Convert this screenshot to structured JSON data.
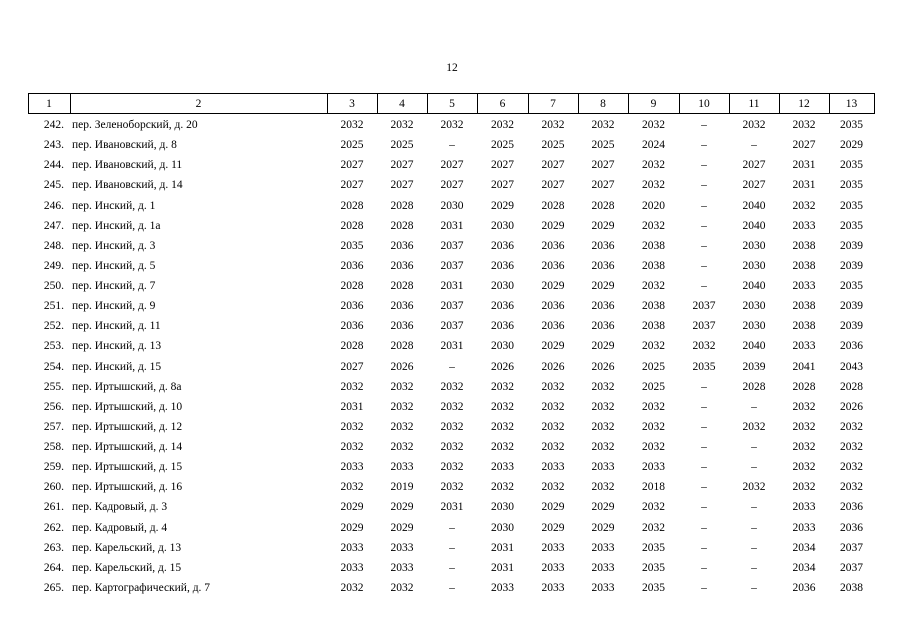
{
  "page_number": "12",
  "table": {
    "header": [
      "1",
      "2",
      "3",
      "4",
      "5",
      "6",
      "7",
      "8",
      "9",
      "10",
      "11",
      "12",
      "13"
    ],
    "rows": [
      [
        "242.",
        "пер. Зеленоборский, д. 20",
        "2032",
        "2032",
        "2032",
        "2032",
        "2032",
        "2032",
        "2032",
        "–",
        "2032",
        "2032",
        "2035"
      ],
      [
        "243.",
        "пер. Ивановский, д. 8",
        "2025",
        "2025",
        "–",
        "2025",
        "2025",
        "2025",
        "2024",
        "–",
        "–",
        "2027",
        "2029"
      ],
      [
        "244.",
        "пер. Ивановский, д. 11",
        "2027",
        "2027",
        "2027",
        "2027",
        "2027",
        "2027",
        "2032",
        "–",
        "2027",
        "2031",
        "2035"
      ],
      [
        "245.",
        "пер. Ивановский, д. 14",
        "2027",
        "2027",
        "2027",
        "2027",
        "2027",
        "2027",
        "2032",
        "–",
        "2027",
        "2031",
        "2035"
      ],
      [
        "246.",
        "пер. Инский, д. 1",
        "2028",
        "2028",
        "2030",
        "2029",
        "2028",
        "2028",
        "2020",
        "–",
        "2040",
        "2032",
        "2035"
      ],
      [
        "247.",
        "пер. Инский, д. 1а",
        "2028",
        "2028",
        "2031",
        "2030",
        "2029",
        "2029",
        "2032",
        "–",
        "2040",
        "2033",
        "2035"
      ],
      [
        "248.",
        "пер. Инский, д. 3",
        "2035",
        "2036",
        "2037",
        "2036",
        "2036",
        "2036",
        "2038",
        "–",
        "2030",
        "2038",
        "2039"
      ],
      [
        "249.",
        "пер. Инский, д. 5",
        "2036",
        "2036",
        "2037",
        "2036",
        "2036",
        "2036",
        "2038",
        "–",
        "2030",
        "2038",
        "2039"
      ],
      [
        "250.",
        "пер. Инский, д. 7",
        "2028",
        "2028",
        "2031",
        "2030",
        "2029",
        "2029",
        "2032",
        "–",
        "2040",
        "2033",
        "2035"
      ],
      [
        "251.",
        "пер. Инский, д. 9",
        "2036",
        "2036",
        "2037",
        "2036",
        "2036",
        "2036",
        "2038",
        "2037",
        "2030",
        "2038",
        "2039"
      ],
      [
        "252.",
        "пер. Инский, д. 11",
        "2036",
        "2036",
        "2037",
        "2036",
        "2036",
        "2036",
        "2038",
        "2037",
        "2030",
        "2038",
        "2039"
      ],
      [
        "253.",
        "пер. Инский, д. 13",
        "2028",
        "2028",
        "2031",
        "2030",
        "2029",
        "2029",
        "2032",
        "2032",
        "2040",
        "2033",
        "2036"
      ],
      [
        "254.",
        "пер. Инский, д. 15",
        "2027",
        "2026",
        "–",
        "2026",
        "2026",
        "2026",
        "2025",
        "2035",
        "2039",
        "2041",
        "2043"
      ],
      [
        "255.",
        "пер. Иртышский, д. 8а",
        "2032",
        "2032",
        "2032",
        "2032",
        "2032",
        "2032",
        "2025",
        "–",
        "2028",
        "2028",
        "2028"
      ],
      [
        "256.",
        "пер. Иртышский, д. 10",
        "2031",
        "2032",
        "2032",
        "2032",
        "2032",
        "2032",
        "2032",
        "–",
        "–",
        "2032",
        "2026"
      ],
      [
        "257.",
        "пер. Иртышский, д. 12",
        "2032",
        "2032",
        "2032",
        "2032",
        "2032",
        "2032",
        "2032",
        "–",
        "2032",
        "2032",
        "2032"
      ],
      [
        "258.",
        "пер. Иртышский, д. 14",
        "2032",
        "2032",
        "2032",
        "2032",
        "2032",
        "2032",
        "2032",
        "–",
        "–",
        "2032",
        "2032"
      ],
      [
        "259.",
        "пер. Иртышский, д. 15",
        "2033",
        "2033",
        "2032",
        "2033",
        "2033",
        "2033",
        "2033",
        "–",
        "–",
        "2032",
        "2032"
      ],
      [
        "260.",
        "пер. Иртышский, д. 16",
        "2032",
        "2019",
        "2032",
        "2032",
        "2032",
        "2032",
        "2018",
        "–",
        "2032",
        "2032",
        "2032"
      ],
      [
        "261.",
        "пер. Кадровый, д. 3",
        "2029",
        "2029",
        "2031",
        "2030",
        "2029",
        "2029",
        "2032",
        "–",
        "–",
        "2033",
        "2036"
      ],
      [
        "262.",
        "пер. Кадровый, д. 4",
        "2029",
        "2029",
        "–",
        "2030",
        "2029",
        "2029",
        "2032",
        "–",
        "–",
        "2033",
        "2036"
      ],
      [
        "263.",
        "пер. Карельский, д. 13",
        "2033",
        "2033",
        "–",
        "2031",
        "2033",
        "2033",
        "2035",
        "–",
        "–",
        "2034",
        "2037"
      ],
      [
        "264.",
        "пер. Карельский, д. 15",
        "2033",
        "2033",
        "–",
        "2031",
        "2033",
        "2033",
        "2035",
        "–",
        "–",
        "2034",
        "2037"
      ],
      [
        "265.",
        "пер. Картографический, д. 7",
        "2032",
        "2032",
        "–",
        "2033",
        "2033",
        "2033",
        "2035",
        "–",
        "–",
        "2036",
        "2038"
      ]
    ]
  }
}
